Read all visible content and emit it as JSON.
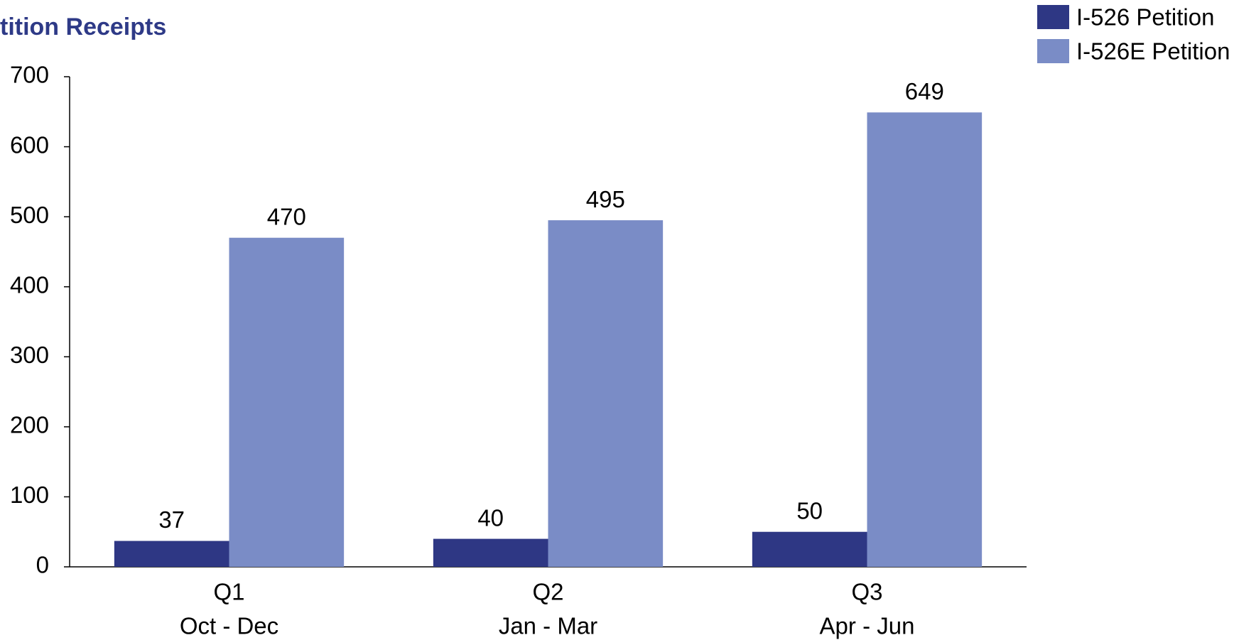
{
  "chart_data": {
    "type": "bar",
    "title": "tition Receipts",
    "categories": [
      [
        "Q1",
        "Oct - Dec"
      ],
      [
        "Q2",
        "Jan - Mar"
      ],
      [
        "Q3",
        "Apr - Jun"
      ]
    ],
    "series": [
      {
        "name": "I-526 Petition",
        "color": "#2e3784",
        "values": [
          37,
          40,
          50
        ]
      },
      {
        "name": "I-526E Petition",
        "color": "#7a8cc6",
        "values": [
          470,
          495,
          649
        ]
      }
    ],
    "ylim": [
      0,
      700
    ],
    "yticks": [
      0,
      100,
      200,
      300,
      400,
      500,
      600,
      700
    ],
    "legend": "top-right",
    "grid": false
  }
}
